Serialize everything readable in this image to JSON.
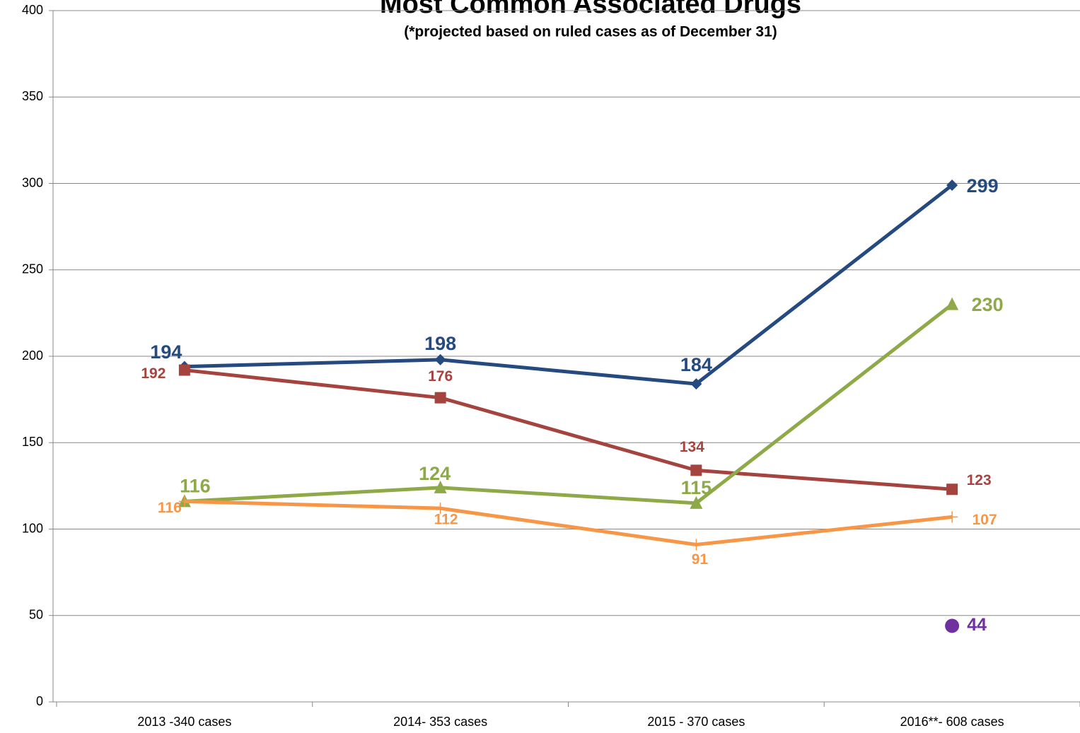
{
  "chart_data": {
    "type": "line",
    "title": "Most Common Associated Drugs",
    "subtitle": "(*projected based on ruled cases as of December 31)",
    "categories": [
      "2013 -340 cases",
      "2014- 353 cases",
      "2015 - 370 cases",
      "2016**- 608 cases"
    ],
    "series": [
      {
        "color": "#254a7f",
        "values": [
          194,
          198,
          184,
          299
        ]
      },
      {
        "color": "#a5433f",
        "values": [
          192,
          176,
          134,
          123
        ]
      },
      {
        "color": "#8eaa48",
        "values": [
          116,
          124,
          115,
          230
        ]
      },
      {
        "color": "#f79646",
        "values": [
          116,
          112,
          91,
          107
        ]
      },
      {
        "color": "#7030a0",
        "values": [
          null,
          null,
          null,
          44
        ]
      }
    ],
    "ylim": [
      0,
      400
    ],
    "yticks": [
      0,
      50,
      100,
      150,
      200,
      250,
      300,
      350,
      400
    ],
    "grid": true
  }
}
